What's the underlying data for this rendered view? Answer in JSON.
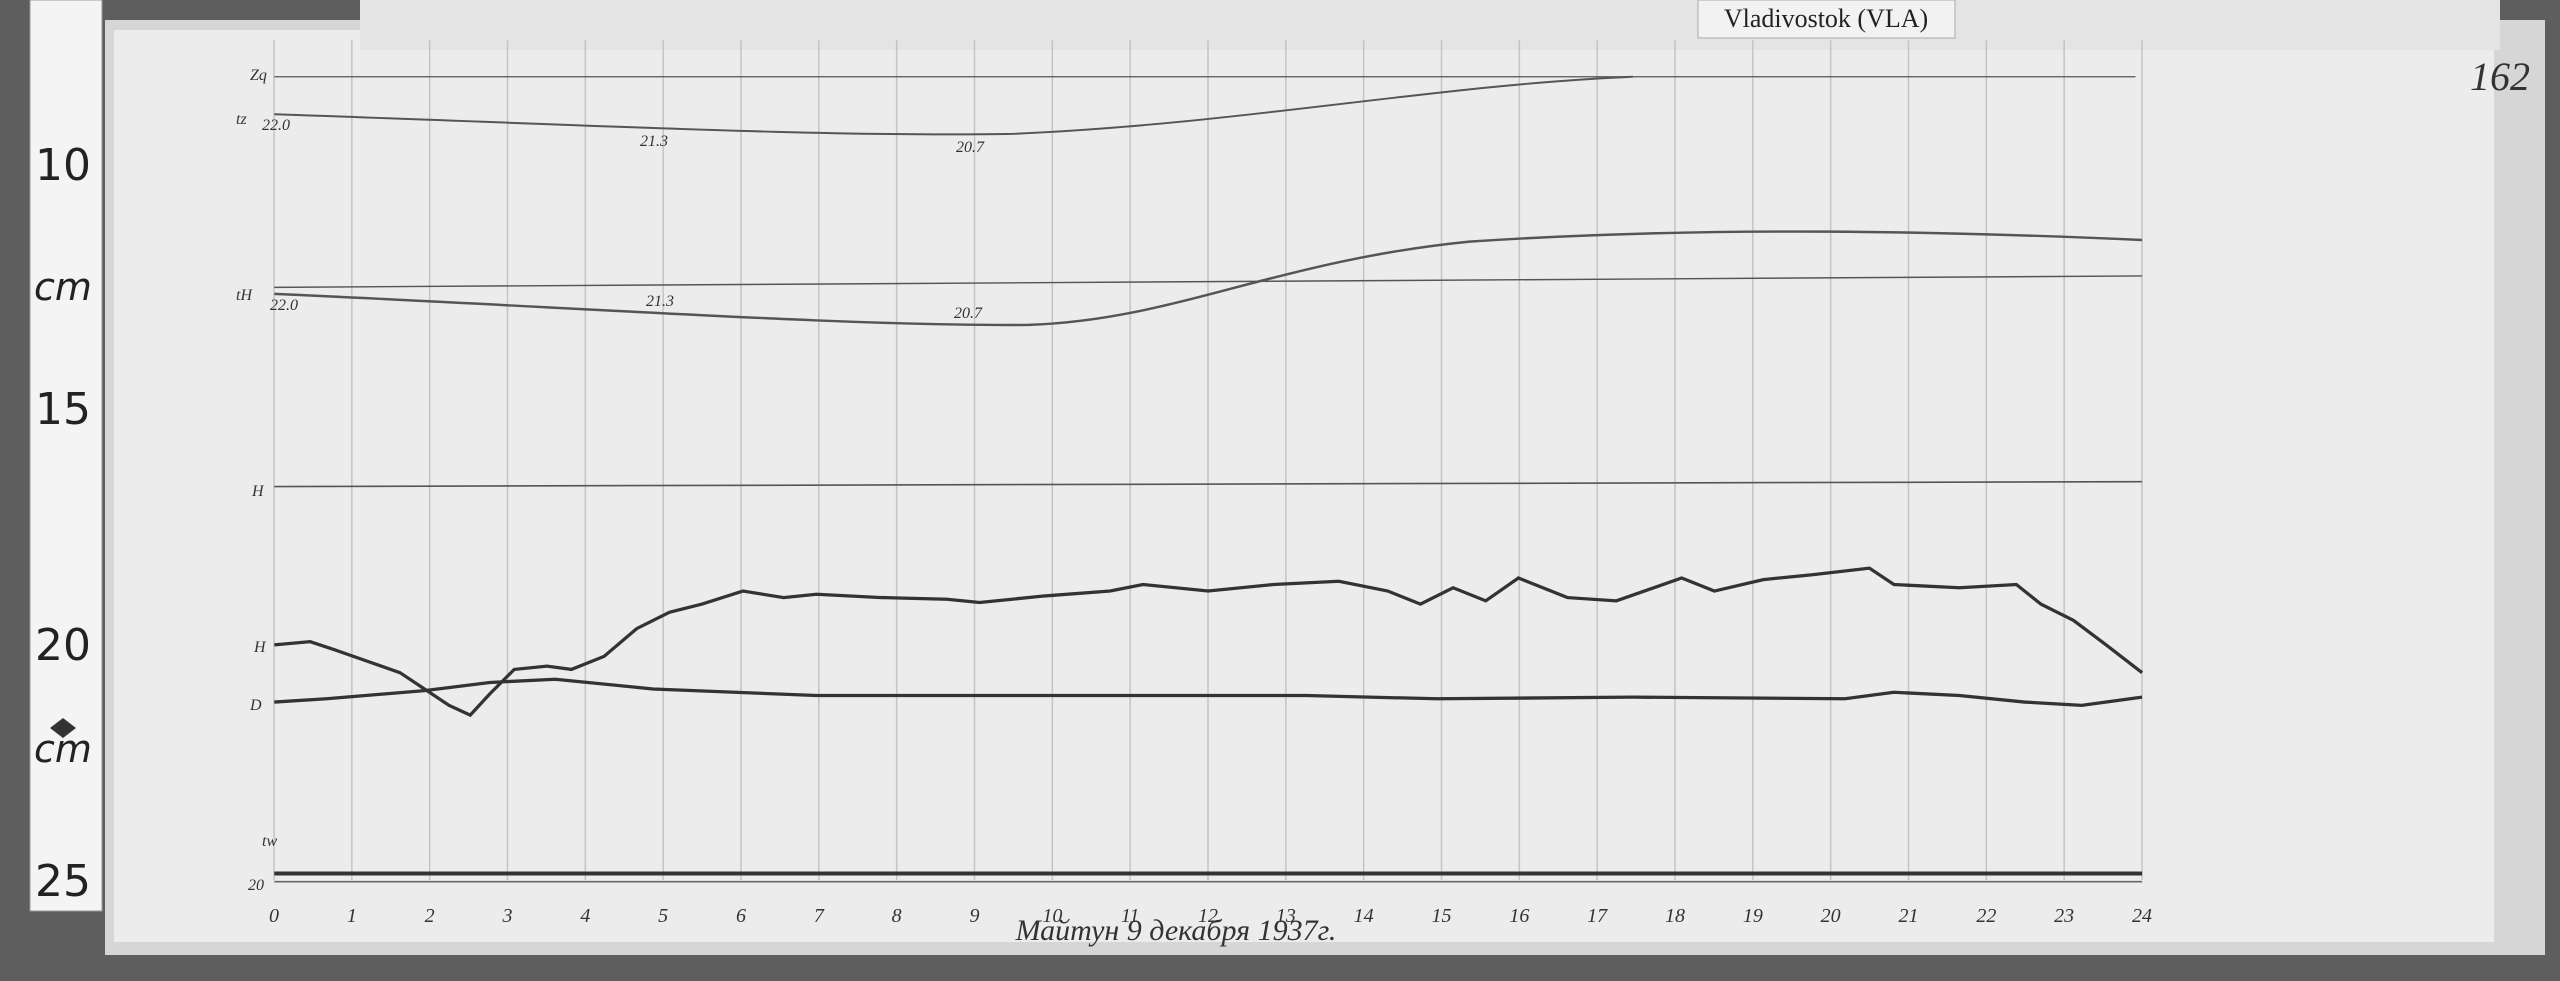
{
  "header": {
    "station": "Vladivostok (VLA)",
    "sheet_number": "162"
  },
  "ruler": {
    "labels": [
      "10",
      "cm",
      "15",
      "20",
      "cm",
      "25"
    ]
  },
  "traces": {
    "z_label": "Zq",
    "tz_label": "tz",
    "tz_start": "22.0",
    "tz_mid": "21.3",
    "tz_min": "20.7",
    "th_label": "tH",
    "th_start": "22.0",
    "th_mid": "21.3",
    "th_min": "20.7",
    "h0_label": "H",
    "h_label": "H",
    "d_label": "D",
    "w_label": "20",
    "tw_label": "tw"
  },
  "hour_labels": [
    "0",
    "1",
    "2",
    "3",
    "4",
    "5",
    "6",
    "7",
    "8",
    "9",
    "10",
    "11",
    "12",
    "13",
    "14",
    "15",
    "16",
    "17",
    "18",
    "19",
    "20",
    "21",
    "22",
    "23",
    "24"
  ],
  "caption": "Майтун  9 декабря 1937г."
}
